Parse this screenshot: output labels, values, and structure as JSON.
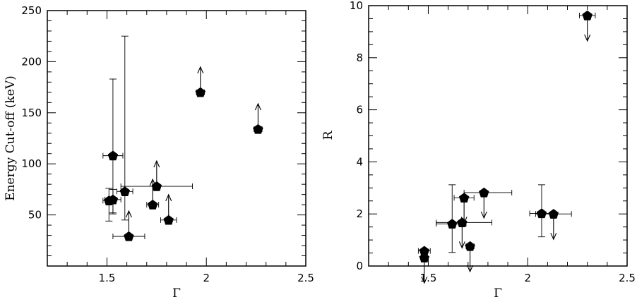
{
  "chart_data": [
    {
      "type": "scatter",
      "xlabel": "Γ",
      "ylabel": "Energy Cut-off (keV)",
      "xlim": [
        1.2,
        2.5
      ],
      "ylim": [
        0,
        250
      ],
      "xticks": [
        1.5,
        2,
        2.5
      ],
      "xtick_labels": [
        "1.5",
        "2",
        "2.5"
      ],
      "yticks": [
        50,
        100,
        150,
        200,
        250
      ],
      "ytick_labels": [
        "50",
        "100",
        "150",
        "200",
        "250"
      ],
      "grid": false,
      "points": [
        {
          "x": 1.53,
          "y": 108,
          "xerr": [
            0.05,
            0.05
          ],
          "yerr": [
            56,
            75
          ],
          "limit": "none"
        },
        {
          "x": 1.51,
          "y": 64,
          "xerr": [
            0.03,
            0.03
          ],
          "yerr": [
            20,
            12
          ],
          "limit": "none"
        },
        {
          "x": 1.53,
          "y": 65,
          "xerr": [
            0.04,
            0.04
          ],
          "yerr": [
            14,
            10
          ],
          "limit": "none"
        },
        {
          "x": 1.59,
          "y": 73,
          "xerr": [
            0.04,
            0.04
          ],
          "yerr": [
            28,
            152
          ],
          "limit": "none"
        },
        {
          "x": 1.61,
          "y": 29,
          "xerr": [
            0.08,
            0.08
          ],
          "yerr": [
            0,
            0
          ],
          "limit": "lower"
        },
        {
          "x": 1.73,
          "y": 60,
          "xerr": [
            0.03,
            0.03
          ],
          "yerr": [
            0,
            0
          ],
          "limit": "lower"
        },
        {
          "x": 1.75,
          "y": 78,
          "xerr": [
            0.18,
            0.18
          ],
          "yerr": [
            0,
            0
          ],
          "limit": "lower"
        },
        {
          "x": 1.81,
          "y": 45,
          "xerr": [
            0.04,
            0.04
          ],
          "yerr": [
            0,
            0
          ],
          "limit": "lower"
        },
        {
          "x": 1.97,
          "y": 170,
          "xerr": [
            0.02,
            0.02
          ],
          "yerr": [
            0,
            0
          ],
          "limit": "lower"
        },
        {
          "x": 2.26,
          "y": 134,
          "xerr": [
            0.02,
            0.02
          ],
          "yerr": [
            0,
            0
          ],
          "limit": "lower"
        }
      ]
    },
    {
      "type": "scatter",
      "xlabel": "Γ",
      "ylabel": "R",
      "xlim": [
        1.2,
        2.5
      ],
      "ylim": [
        0,
        10
      ],
      "xticks": [
        1.5,
        2,
        2.5
      ],
      "xtick_labels": [
        "1.5",
        "2",
        "2.5"
      ],
      "yticks": [
        0,
        2,
        4,
        6,
        8,
        10
      ],
      "ytick_labels": [
        "0",
        "2",
        "4",
        "6",
        "8",
        "10"
      ],
      "grid": false,
      "points": [
        {
          "x": 1.48,
          "y": 0.58,
          "xerr": [
            0.03,
            0.03
          ],
          "yerr": [
            0,
            0
          ],
          "limit": "none"
        },
        {
          "x": 1.48,
          "y": 0.32,
          "xerr": [
            0.01,
            0.01
          ],
          "yerr": [
            0,
            0
          ],
          "limit": "upper"
        },
        {
          "x": 1.62,
          "y": 1.62,
          "xerr": [
            0.08,
            0.07
          ],
          "yerr": [
            1.1,
            1.5
          ],
          "limit": "none"
        },
        {
          "x": 1.67,
          "y": 1.67,
          "xerr": [
            0.13,
            0.15
          ],
          "yerr": [
            0,
            0
          ],
          "limit": "upper"
        },
        {
          "x": 1.68,
          "y": 2.62,
          "xerr": [
            0.05,
            0.05
          ],
          "yerr": [
            0,
            0
          ],
          "limit": "upper"
        },
        {
          "x": 1.71,
          "y": 0.76,
          "xerr": [
            0.02,
            0.02
          ],
          "yerr": [
            0,
            0
          ],
          "limit": "upper"
        },
        {
          "x": 1.78,
          "y": 2.82,
          "xerr": [
            0.1,
            0.14
          ],
          "yerr": [
            0,
            0
          ],
          "limit": "upper"
        },
        {
          "x": 2.07,
          "y": 2.02,
          "xerr": [
            0.06,
            0.06
          ],
          "yerr": [
            0.9,
            1.1
          ],
          "limit": "none"
        },
        {
          "x": 2.13,
          "y": 2.0,
          "xerr": [
            0.09,
            0.09
          ],
          "yerr": [
            0,
            0
          ],
          "limit": "upper"
        },
        {
          "x": 2.3,
          "y": 9.62,
          "xerr": [
            0.04,
            0.04
          ],
          "yerr": [
            0,
            0
          ],
          "limit": "upper"
        }
      ]
    }
  ]
}
